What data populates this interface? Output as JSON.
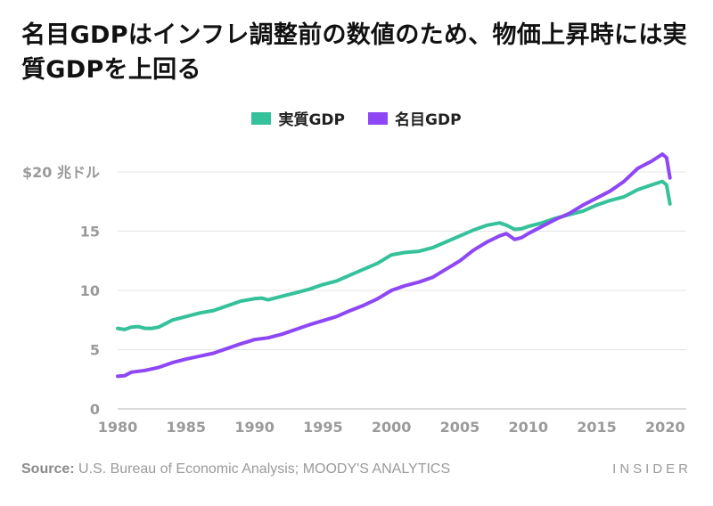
{
  "title": "名目GDPはインフレ調整前の数値のため、物価上昇時には実質GDPを上回る",
  "legend": {
    "real": "実質GDP",
    "nominal": "名目GDP"
  },
  "colors": {
    "real": "#35c19a",
    "nominal": "#8d47f5",
    "grid": "#e4e4e4",
    "axis_text": "#9a9a9a"
  },
  "footer": {
    "source_label": "Source:",
    "source_text": " U.S. Bureau of Economic Analysis; MOODY'S ANALYTICS"
  },
  "brand": "INSIDER",
  "chart_data": {
    "type": "line",
    "title": "名目GDPはインフレ調整前の数値のため、物価上昇時には実質GDPを上回る",
    "xlabel": "",
    "ylabel": "",
    "unit_label": "$20 兆ドル",
    "xlim": [
      1980,
      2020.5
    ],
    "ylim": [
      0,
      20
    ],
    "x_ticks": [
      1980,
      1985,
      1990,
      1995,
      2000,
      2005,
      2010,
      2015,
      2020
    ],
    "y_ticks": [
      0,
      5,
      10,
      15,
      20
    ],
    "y_tick_labels": [
      "0",
      "5",
      "10",
      "15",
      "$20 兆ドル"
    ],
    "grid": true,
    "legend_position": "top-center",
    "series": [
      {
        "name": "実質GDP",
        "x": [
          1980,
          1980.5,
          1981,
          1981.5,
          1982,
          1982.5,
          1983,
          1984,
          1985,
          1986,
          1987,
          1988,
          1989,
          1990,
          1990.5,
          1991,
          1992,
          1993,
          1994,
          1995,
          1996,
          1997,
          1998,
          1999,
          2000,
          2001,
          2002,
          2003,
          2004,
          2005,
          2006,
          2007,
          2007.9,
          2008.4,
          2009,
          2009.5,
          2010,
          2011,
          2012,
          2013,
          2014,
          2015,
          2016,
          2017,
          2018,
          2019,
          2019.8,
          2020.1,
          2020.35
        ],
        "values": [
          6.8,
          6.7,
          6.9,
          6.95,
          6.8,
          6.8,
          6.9,
          7.5,
          7.8,
          8.1,
          8.3,
          8.7,
          9.1,
          9.3,
          9.35,
          9.2,
          9.5,
          9.8,
          10.1,
          10.5,
          10.8,
          11.3,
          11.8,
          12.3,
          13.0,
          13.2,
          13.3,
          13.6,
          14.1,
          14.6,
          15.1,
          15.5,
          15.7,
          15.5,
          15.15,
          15.2,
          15.4,
          15.7,
          16.1,
          16.4,
          16.7,
          17.2,
          17.6,
          17.9,
          18.5,
          18.9,
          19.2,
          18.9,
          17.3
        ]
      },
      {
        "name": "名目GDP",
        "x": [
          1980,
          1980.5,
          1981,
          1982,
          1983,
          1984,
          1985,
          1986,
          1987,
          1988,
          1989,
          1990,
          1991,
          1992,
          1993,
          1994,
          1995,
          1996,
          1997,
          1998,
          1999,
          2000,
          2001,
          2002,
          2003,
          2004,
          2005,
          2006,
          2007,
          2007.9,
          2008.4,
          2009,
          2009.5,
          2010,
          2011,
          2012,
          2013,
          2014,
          2015,
          2016,
          2017,
          2018,
          2019,
          2019.8,
          2020.1,
          2020.35
        ],
        "values": [
          2.75,
          2.8,
          3.1,
          3.25,
          3.5,
          3.9,
          4.2,
          4.45,
          4.7,
          5.1,
          5.5,
          5.85,
          6.0,
          6.3,
          6.7,
          7.1,
          7.45,
          7.8,
          8.3,
          8.75,
          9.3,
          10.0,
          10.4,
          10.7,
          11.1,
          11.8,
          12.5,
          13.4,
          14.1,
          14.6,
          14.8,
          14.3,
          14.45,
          14.8,
          15.4,
          16.0,
          16.5,
          17.2,
          17.8,
          18.4,
          19.2,
          20.3,
          20.9,
          21.5,
          21.2,
          19.5
        ]
      }
    ]
  }
}
